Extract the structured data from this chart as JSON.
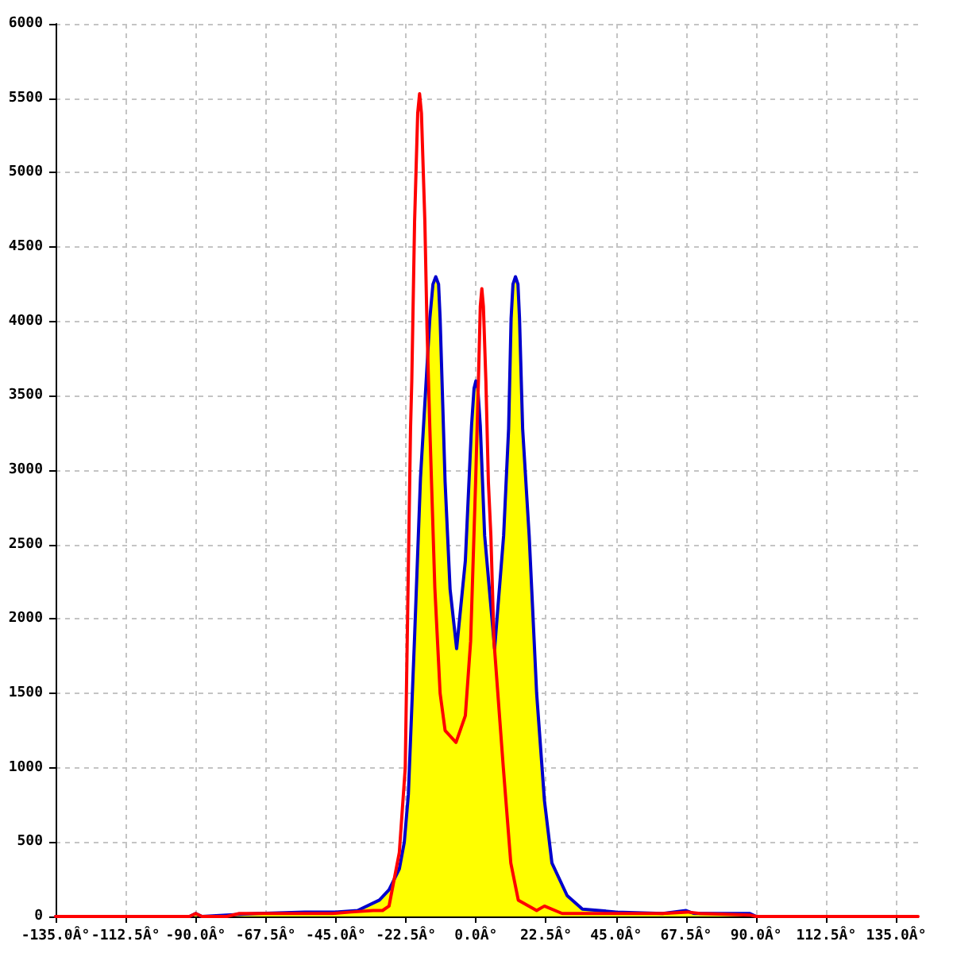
{
  "chart_data": {
    "type": "line",
    "color": "#0000cc",
    "grid": true,
    "marker": "none",
    "line_style": "solid",
    "xlim": [
      -135,
      142
    ],
    "ylim": [
      0,
      6000
    ],
    "xticks": [
      {
        "value": -135,
        "label": "-135.0Â°"
      },
      {
        "value": -112.5,
        "label": "-112.5Â°"
      },
      {
        "value": -90,
        "label": "-90.0Â°"
      },
      {
        "value": -67.5,
        "label": "-67.5Â°"
      },
      {
        "value": -45,
        "label": "-45.0Â°"
      },
      {
        "value": -22.5,
        "label": "-22.5Â°"
      },
      {
        "value": 0,
        "label": "0.0Â°"
      },
      {
        "value": 22.5,
        "label": "22.5Â°"
      },
      {
        "value": 45,
        "label": "45.0Â°"
      },
      {
        "value": 67.5,
        "label": "67.5Â°"
      },
      {
        "value": 90,
        "label": "90.0Â°"
      },
      {
        "value": 112.5,
        "label": "112.5Â°"
      },
      {
        "value": 135,
        "label": "135.0Â°"
      }
    ],
    "yticks": [
      0,
      500,
      1000,
      1500,
      2000,
      2500,
      3000,
      3500,
      4000,
      4500,
      5000,
      5500,
      6000
    ],
    "series": [
      {
        "type": "area",
        "color": "#ffff00",
        "x": [
          -135,
          -92,
          -90,
          -88,
          -80,
          -70,
          -55,
          -45,
          -38,
          -31,
          -27.9,
          -24.6,
          -23,
          -21.7,
          -19.7,
          -17.8,
          -14.8,
          -13.8,
          -12.9,
          -12,
          -11.5,
          -9.9,
          -8.3,
          -6.2,
          -3.4,
          -1.4,
          -0.6,
          0,
          0.6,
          1.4,
          2.8,
          6,
          8.9,
          10.5,
          11.3,
          11.9,
          12.7,
          13.5,
          14,
          15,
          17.1,
          19.5,
          22,
          24.4,
          29.3,
          34.2,
          45,
          60,
          67.5,
          70,
          75,
          88,
          90
        ],
        "values": [
          0,
          0,
          20,
          0,
          10,
          20,
          30,
          30,
          40,
          110,
          180,
          320,
          500,
          820,
          1880,
          2950,
          4020,
          4250,
          4300,
          4250,
          4020,
          2920,
          2200,
          1800,
          2390,
          3300,
          3550,
          3600,
          3550,
          3300,
          2560,
          1800,
          2560,
          3280,
          4020,
          4250,
          4300,
          4250,
          4020,
          3280,
          2560,
          1500,
          780,
          360,
          140,
          50,
          30,
          20,
          40,
          20,
          20,
          20,
          0
        ]
      },
      {
        "color": "#ff0000",
        "x": [
          -135,
          -92,
          -90,
          -88,
          -80,
          -76,
          -60,
          -46,
          -40,
          -33,
          -30,
          -27.9,
          -24.6,
          -22.7,
          -21,
          -20.6,
          -19.7,
          -18.7,
          -18.1,
          -17.5,
          -16.4,
          -15.7,
          -14.8,
          -13.2,
          -11.5,
          -9.9,
          -6.4,
          -3.4,
          -1.7,
          -0.1,
          0.8,
          1.4,
          1.9,
          2.4,
          3.2,
          4,
          4.8,
          5.8,
          8.8,
          11.2,
          13.6,
          19.5,
          22,
          27.7,
          35,
          50,
          60,
          68,
          72,
          88,
          90,
          142
        ],
        "values": [
          0,
          0,
          20,
          0,
          0,
          20,
          20,
          20,
          30,
          40,
          40,
          70,
          430,
          1000,
          3280,
          3600,
          4670,
          5400,
          5530,
          5400,
          4670,
          3950,
          3280,
          2210,
          1500,
          1250,
          1170,
          1350,
          1850,
          2920,
          3600,
          4100,
          4220,
          4100,
          3600,
          2920,
          2560,
          1850,
          1000,
          360,
          110,
          40,
          70,
          20,
          20,
          20,
          20,
          30,
          20,
          10,
          0,
          0
        ]
      }
    ]
  }
}
